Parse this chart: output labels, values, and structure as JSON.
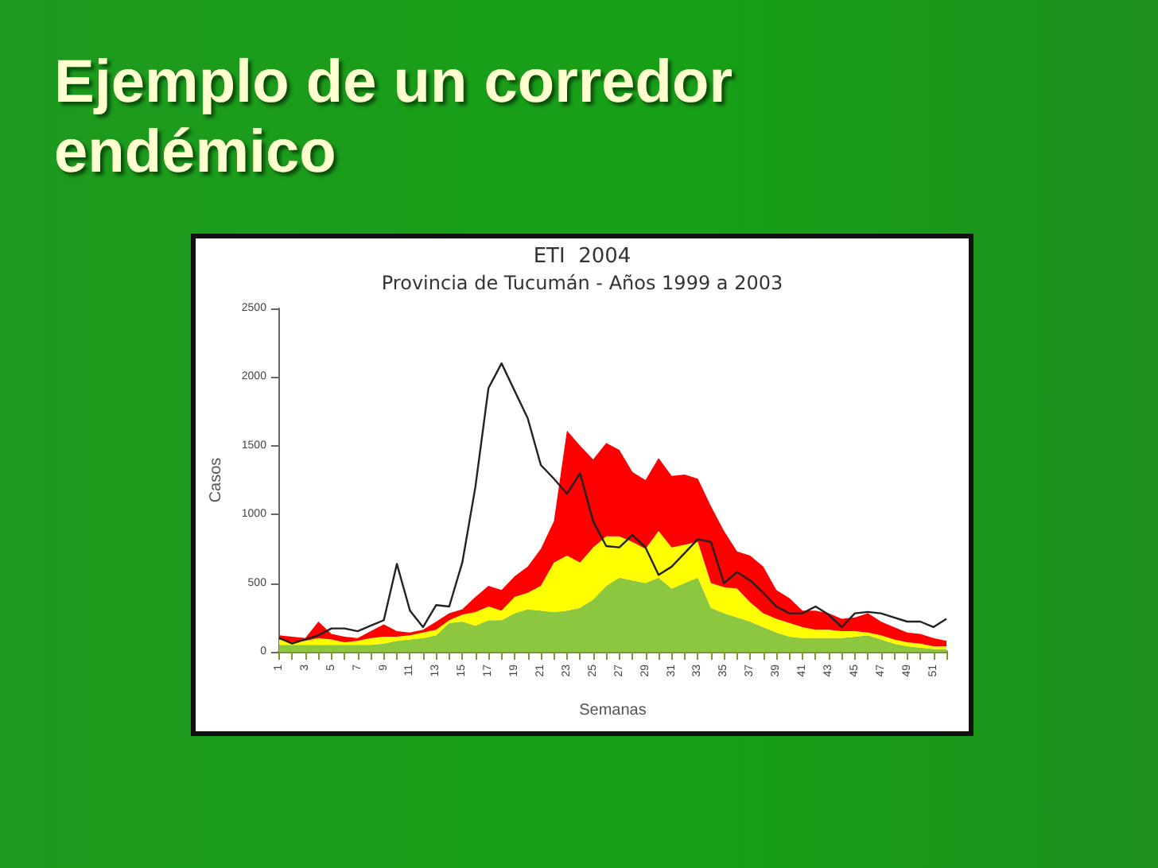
{
  "chart_data": {
    "type": "area",
    "title": "ETI  2004",
    "subtitle": "Provincia de Tucumán - Años 1999 a 2003",
    "xlabel": "Semanas",
    "ylabel": "Casos",
    "annotations": [
      "Ejemplo de un corredor endémico"
    ],
    "categories": [
      "1",
      null,
      "3",
      null,
      "5",
      null,
      "7",
      null,
      "9",
      null,
      "11",
      null,
      "13",
      null,
      "15",
      null,
      "17",
      null,
      "19",
      null,
      "21",
      null,
      "23",
      null,
      "25",
      null,
      "27",
      null,
      "29",
      null,
      "31",
      null,
      "33",
      null,
      "35",
      null,
      "37",
      null,
      "39",
      null,
      "41",
      null,
      "43",
      null,
      "45",
      null,
      "47",
      null,
      "49",
      null,
      "51",
      null
    ],
    "stacked": true,
    "marker": "none",
    "grid": false,
    "ylim": [
      0,
      2500
    ],
    "yticks": [
      0,
      500,
      1000,
      1500,
      2000,
      2500
    ],
    "series": [
      {
        "color": "#8dc63f",
        "values": [
          50,
          50,
          50,
          50,
          50,
          50,
          50,
          50,
          60,
          80,
          90,
          100,
          120,
          210,
          220,
          190,
          230,
          230,
          280,
          310,
          300,
          290,
          300,
          320,
          380,
          480,
          540,
          520,
          500,
          540,
          460,
          500,
          540,
          320,
          280,
          250,
          220,
          180,
          140,
          110,
          100,
          100,
          100,
          100,
          110,
          120,
          90,
          60,
          40,
          30,
          20,
          20
        ]
      },
      {
        "color": "#ffff00",
        "values": [
          40,
          20,
          30,
          50,
          40,
          20,
          30,
          50,
          50,
          30,
          30,
          40,
          40,
          20,
          50,
          100,
          100,
          70,
          120,
          120,
          180,
          360,
          400,
          330,
          380,
          360,
          300,
          280,
          250,
          340,
          300,
          280,
          260,
          180,
          190,
          210,
          140,
          100,
          100,
          100,
          80,
          60,
          60,
          50,
          40,
          20,
          30,
          30,
          30,
          30,
          20,
          20
        ]
      },
      {
        "color": "#ff0000",
        "values": [
          30,
          40,
          20,
          120,
          40,
          40,
          20,
          50,
          90,
          40,
          20,
          20,
          60,
          50,
          40,
          110,
          150,
          150,
          150,
          190,
          270,
          300,
          910,
          850,
          640,
          680,
          630,
          510,
          500,
          530,
          520,
          510,
          460,
          560,
          410,
          270,
          340,
          340,
          210,
          180,
          120,
          140,
          120,
          90,
          100,
          140,
          100,
          90,
          70,
          70,
          60,
          40
        ]
      },
      {
        "type": "line",
        "color": "#222222",
        "values": [
          100,
          60,
          90,
          120,
          170,
          170,
          150,
          190,
          230,
          640,
          300,
          180,
          340,
          330,
          650,
          1200,
          1920,
          2100,
          1900,
          1700,
          1360,
          1260,
          1150,
          1300,
          950,
          770,
          760,
          850,
          760,
          560,
          620,
          720,
          820,
          800,
          500,
          580,
          520,
          430,
          330,
          280,
          280,
          330,
          270,
          180,
          280,
          290,
          280,
          250,
          220,
          220,
          180,
          240
        ]
      }
    ]
  }
}
